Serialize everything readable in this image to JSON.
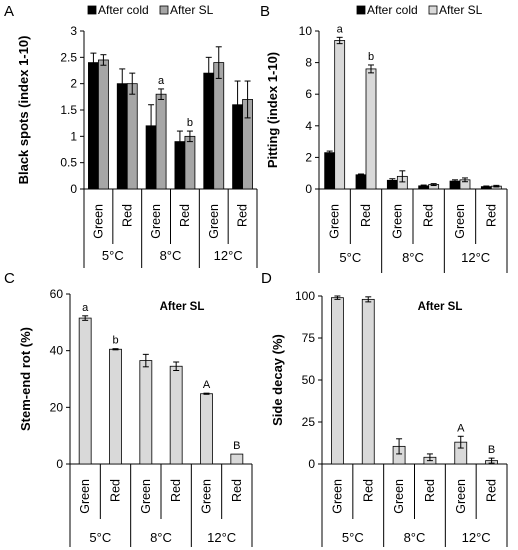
{
  "colors": {
    "after_cold": "#000000",
    "after_sl_ab": "#a6a6a6",
    "after_sl_cd": "#d9d9d9",
    "stroke": "#000000"
  },
  "chart_data": [
    {
      "panel": "A",
      "type": "bar",
      "ylabel": "Black spots (index 1-10)",
      "ylim": [
        0,
        3
      ],
      "yticks": [
        "0",
        "0.5",
        "1",
        "1.5",
        "2",
        "2.5",
        "3"
      ],
      "legend": [
        "After cold",
        "After SL"
      ],
      "categories": [
        "Green",
        "Red",
        "Green",
        "Red",
        "Green",
        "Red"
      ],
      "groups": [
        "5°C",
        "8°C",
        "12°C"
      ],
      "series": [
        {
          "name": "After cold",
          "values": [
            2.4,
            2.0,
            1.2,
            0.9,
            2.2,
            1.6
          ],
          "errors": [
            0.18,
            0.28,
            0.4,
            0.2,
            0.3,
            0.45
          ]
        },
        {
          "name": "After SL",
          "values": [
            2.45,
            2.0,
            1.8,
            1.0,
            2.4,
            1.7
          ],
          "errors": [
            0.1,
            0.2,
            0.1,
            0.1,
            0.3,
            0.35
          ]
        }
      ],
      "annotations": [
        {
          "text": "a",
          "category": 2,
          "series": 1
        },
        {
          "text": "b",
          "category": 3,
          "series": 1
        }
      ]
    },
    {
      "panel": "B",
      "type": "bar",
      "ylabel": "Pitting (index 1-10)",
      "ylim": [
        0,
        10
      ],
      "yticks": [
        "0",
        "2",
        "4",
        "6",
        "8",
        "10"
      ],
      "legend": [
        "After cold",
        "After SL"
      ],
      "categories": [
        "Green",
        "Red",
        "Green",
        "Red",
        "Green",
        "Red"
      ],
      "groups": [
        "5°C",
        "8°C",
        "12°C"
      ],
      "series": [
        {
          "name": "After cold",
          "values": [
            2.3,
            0.9,
            0.55,
            0.2,
            0.5,
            0.15
          ],
          "errors": [
            0.1,
            0.05,
            0.1,
            0.05,
            0.08,
            0.04
          ]
        },
        {
          "name": "After SL",
          "values": [
            9.4,
            7.6,
            0.8,
            0.28,
            0.58,
            0.18
          ],
          "errors": [
            0.2,
            0.25,
            0.35,
            0.06,
            0.12,
            0.05
          ]
        }
      ],
      "annotations": [
        {
          "text": "a",
          "category": 0,
          "series": 1
        },
        {
          "text": "b",
          "category": 1,
          "series": 1
        }
      ]
    },
    {
      "panel": "C",
      "type": "bar",
      "title": "After SL",
      "ylabel": "Stem-end rot (%)",
      "ylim": [
        0,
        60
      ],
      "yticks": [
        "0",
        "20",
        "40",
        "60"
      ],
      "categories": [
        "Green",
        "Red",
        "Green",
        "Red",
        "Green",
        "Red"
      ],
      "groups": [
        "5°C",
        "8°C",
        "12°C"
      ],
      "series": [
        {
          "values": [
            51.5,
            40.5,
            36.5,
            34.5,
            24.8,
            3.5
          ],
          "errors": [
            0.8,
            0.2,
            2.2,
            1.5,
            0.2,
            0
          ]
        }
      ],
      "annotations": [
        {
          "text": "a",
          "category": 0,
          "series": 0
        },
        {
          "text": "b",
          "category": 1,
          "series": 0
        },
        {
          "text": "A",
          "category": 4,
          "series": 0
        },
        {
          "text": "B",
          "category": 5,
          "series": 0
        }
      ]
    },
    {
      "panel": "D",
      "type": "bar",
      "title": "After SL",
      "ylabel": "Side decay (%)",
      "ylim": [
        0,
        100
      ],
      "yticks": [
        "0",
        "25",
        "50",
        "75",
        "100"
      ],
      "categories": [
        "Green",
        "Red",
        "Green",
        "Red",
        "Green",
        "Red"
      ],
      "groups": [
        "5°C",
        "8°C",
        "12°C"
      ],
      "series": [
        {
          "values": [
            99,
            98,
            10.5,
            4,
            13,
            2
          ],
          "errors": [
            1,
            1.5,
            4.5,
            2,
            3.5,
            1.5
          ]
        }
      ],
      "annotations": [
        {
          "text": "A",
          "category": 4,
          "series": 0
        },
        {
          "text": "B",
          "category": 5,
          "series": 0
        }
      ]
    }
  ]
}
